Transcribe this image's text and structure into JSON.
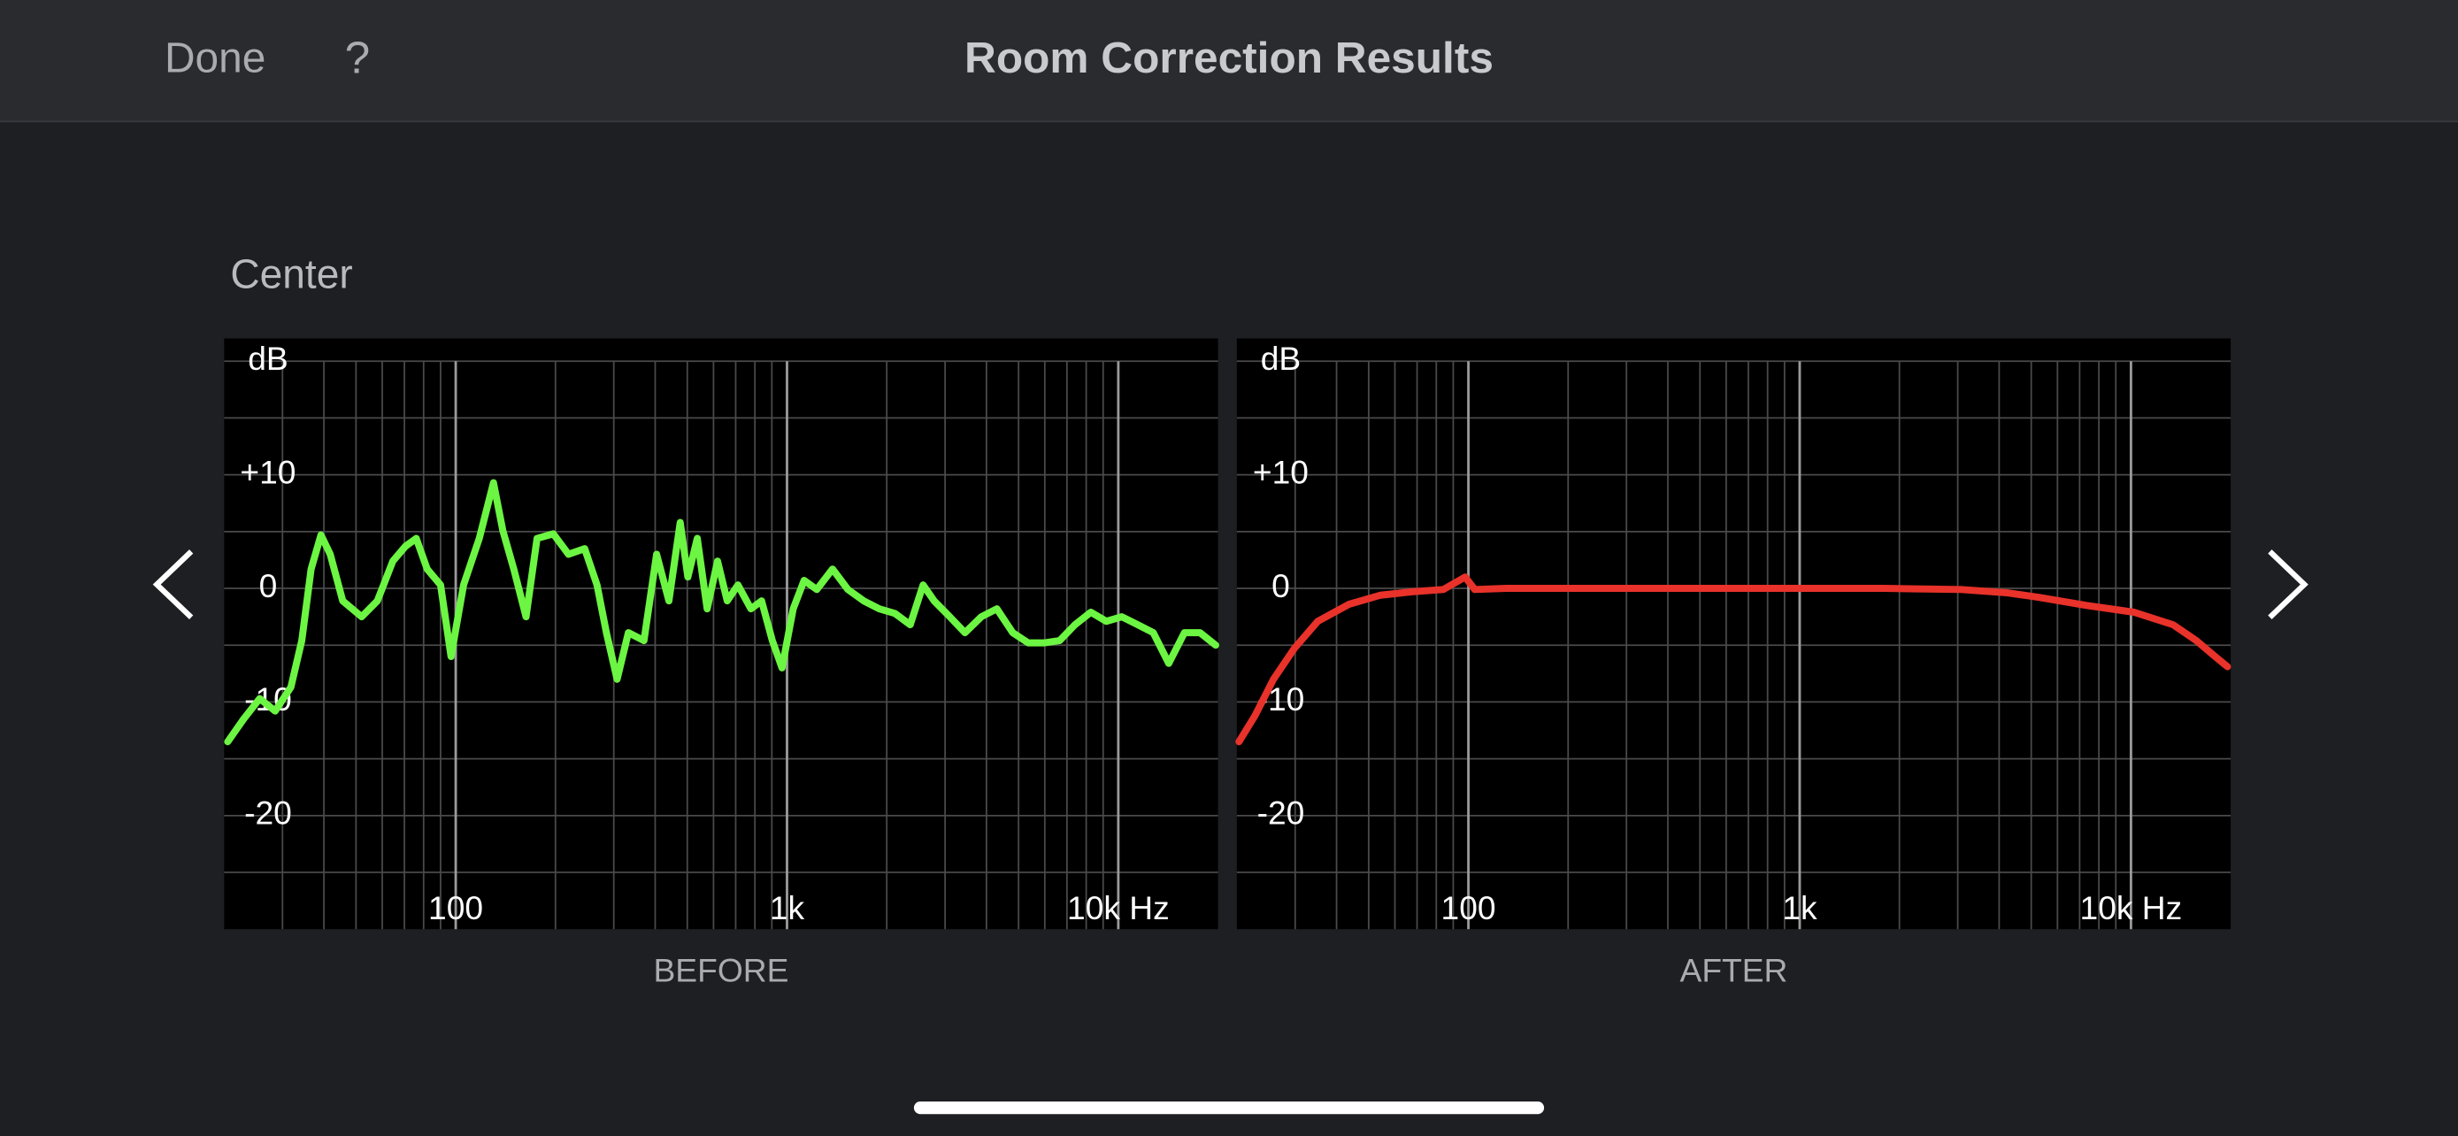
{
  "header": {
    "done": "Done",
    "help": "?",
    "title": "Room Correction Results"
  },
  "channel": "Center",
  "chart_data": [
    {
      "type": "line",
      "caption": "BEFORE",
      "xlog": true,
      "grid": true,
      "color": "#6cf542",
      "xlim": [
        20,
        20000
      ],
      "ylim": [
        -30,
        22
      ],
      "xticks": [
        100,
        {
          "value": 1000,
          "label": "1k"
        },
        {
          "value": 10000,
          "label": "10k Hz"
        }
      ],
      "xgrid": [
        30,
        40,
        50,
        60,
        70,
        80,
        90,
        100,
        200,
        300,
        400,
        500,
        600,
        700,
        800,
        900,
        1000,
        2000,
        3000,
        4000,
        5000,
        6000,
        7000,
        8000,
        9000,
        10000
      ],
      "yticks": [
        {
          "value": 20,
          "label": "dB"
        },
        {
          "value": 10,
          "label": "+10"
        },
        0,
        -10,
        -20
      ],
      "ygrid": [
        20,
        15,
        10,
        5,
        0,
        -5,
        -10,
        -15,
        -20,
        -25
      ],
      "x": [
        20.5,
        22.9,
        25.6,
        28.5,
        31.8,
        34.3,
        36.6,
        39.2,
        41.8,
        45.6,
        52,
        58,
        64.6,
        70.5,
        76,
        82,
        90,
        96.8,
        105.6,
        117.8,
        130,
        138.7,
        149.7,
        163,
        176,
        197,
        219,
        245,
        267,
        285,
        307,
        332,
        370,
        404,
        440,
        476,
        502,
        536,
        574,
        617,
        660,
        711,
        778,
        838,
        903,
        966,
        1044,
        1126,
        1230,
        1372,
        1527,
        1704,
        1900,
        2115,
        2355,
        2575,
        2780,
        3100,
        3445,
        3860,
        4300,
        4800,
        5350,
        5960,
        6650,
        7400,
        8260,
        9200,
        10250,
        11440,
        12750,
        14200,
        15840,
        17650,
        19680
      ],
      "values": [
        -13.5,
        -11.5,
        -9.7,
        -10.8,
        -8.7,
        -4.6,
        1.7,
        4.7,
        3,
        -1.1,
        -2.5,
        -1.1,
        2.4,
        3.7,
        4.4,
        1.7,
        0.3,
        -6,
        0.3,
        4.4,
        9.3,
        5.1,
        1.7,
        -2.5,
        4.4,
        4.8,
        3,
        3.5,
        0.3,
        -3.9,
        -8,
        -3.9,
        -4.6,
        3,
        -1.1,
        5.8,
        1,
        4.4,
        -1.8,
        2.4,
        -1.1,
        0.3,
        -1.8,
        -1.1,
        -4.6,
        -7,
        -1.8,
        0.7,
        -0.1,
        1.7,
        -0.1,
        -1.1,
        -1.8,
        -2.2,
        -3.2,
        0.3,
        -1.1,
        -2.5,
        -3.9,
        -2.5,
        -1.8,
        -3.9,
        -4.8,
        -4.8,
        -4.6,
        -3.2,
        -2.1,
        -2.9,
        -2.5,
        -3.2,
        -3.9,
        -6.6,
        -3.9,
        -3.9,
        -5
      ]
    },
    {
      "type": "line",
      "caption": "AFTER",
      "xlog": true,
      "grid": true,
      "color": "#e8322a",
      "xlim": [
        20,
        20000
      ],
      "ylim": [
        -30,
        22
      ],
      "xticks": [
        100,
        {
          "value": 1000,
          "label": "1k"
        },
        {
          "value": 10000,
          "label": "10k Hz"
        }
      ],
      "xgrid": [
        30,
        40,
        50,
        60,
        70,
        80,
        90,
        100,
        200,
        300,
        400,
        500,
        600,
        700,
        800,
        900,
        1000,
        2000,
        3000,
        4000,
        5000,
        6000,
        7000,
        8000,
        9000,
        10000
      ],
      "yticks": [
        {
          "value": 20,
          "label": "dB"
        },
        {
          "value": 10,
          "label": "+10"
        },
        0,
        -10,
        -20
      ],
      "ygrid": [
        20,
        15,
        10,
        5,
        0,
        -5,
        -10,
        -15,
        -20,
        -25
      ],
      "x": [
        20.3,
        22.7,
        25.8,
        29.8,
        35.1,
        43.6,
        54.3,
        67.5,
        84,
        97.8,
        104.5,
        130,
        201,
        598,
        1782,
        3070,
        4260,
        5300,
        7340,
        10220,
        13400,
        15750,
        17950,
        19560
      ],
      "values": [
        -13.5,
        -11.2,
        -8,
        -5.3,
        -2.9,
        -1.4,
        -0.6,
        -0.3,
        -0.1,
        1,
        -0.1,
        0,
        0,
        0,
        0,
        -0.1,
        -0.4,
        -0.8,
        -1.5,
        -2.1,
        -3.2,
        -4.6,
        -6,
        -6.9
      ]
    }
  ]
}
